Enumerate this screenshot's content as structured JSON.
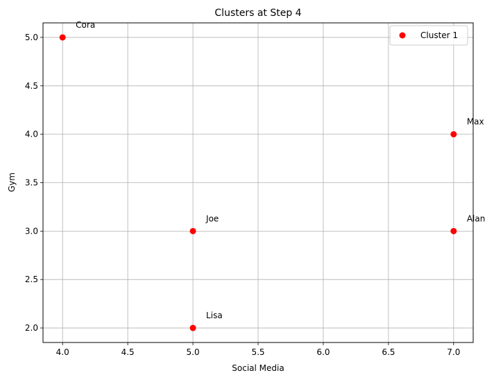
{
  "chart_data": {
    "type": "scatter",
    "title": "Clusters at Step 4",
    "xlabel": "Social Media",
    "ylabel": "Gym",
    "xlim": [
      3.85,
      7.15
    ],
    "ylim": [
      1.85,
      5.15
    ],
    "xticks": [
      4.0,
      4.5,
      5.0,
      5.5,
      6.0,
      6.5,
      7.0
    ],
    "yticks": [
      2.0,
      2.5,
      3.0,
      3.5,
      4.0,
      4.5,
      5.0
    ],
    "xtick_labels": [
      "4.0",
      "4.5",
      "5.0",
      "5.5",
      "6.0",
      "6.5",
      "7.0"
    ],
    "ytick_labels": [
      "2.0",
      "2.5",
      "3.0",
      "3.5",
      "4.0",
      "4.5",
      "5.0"
    ],
    "grid": true,
    "legend_position": "top-right",
    "series": [
      {
        "name": "Cluster 1",
        "color": "#ff0000",
        "points": [
          {
            "label": "Cora",
            "x": 4,
            "y": 5
          },
          {
            "label": "Max",
            "x": 7,
            "y": 4
          },
          {
            "label": "Joe",
            "x": 5,
            "y": 3
          },
          {
            "label": "Alan",
            "x": 7,
            "y": 3
          },
          {
            "label": "Lisa",
            "x": 5,
            "y": 2
          }
        ]
      }
    ]
  }
}
